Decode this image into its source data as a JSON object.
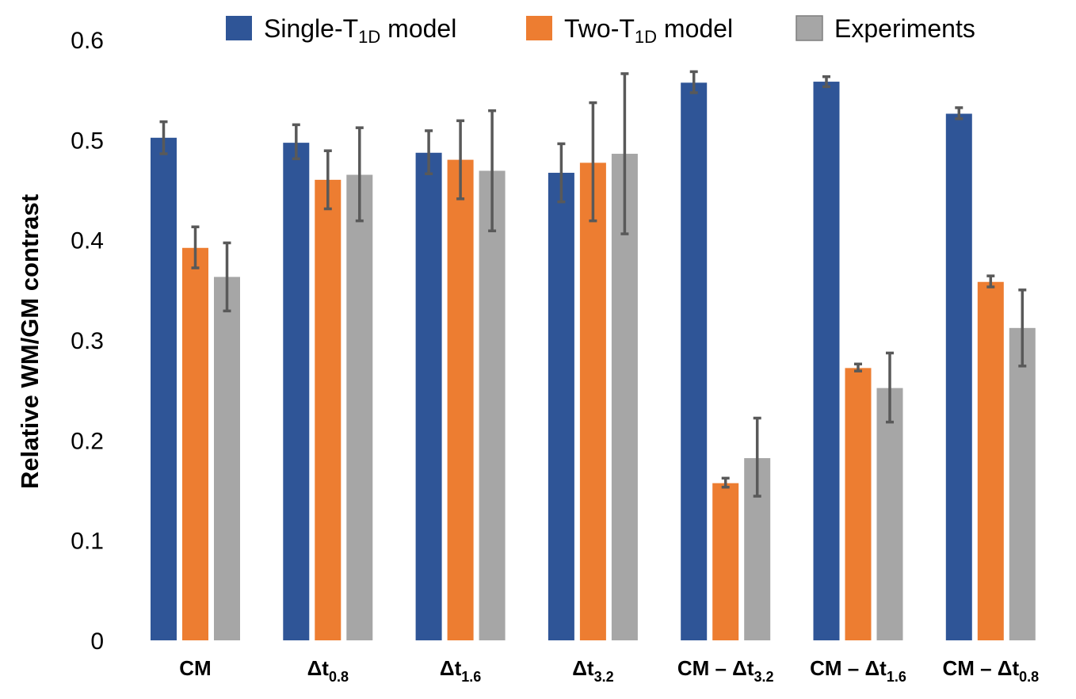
{
  "chart_data": {
    "type": "bar",
    "title": "",
    "xlabel": "",
    "ylabel": "Relative WM/GM contrast",
    "ylim": [
      0,
      0.6
    ],
    "yticks": [
      0,
      0.1,
      0.2,
      0.3,
      0.4,
      0.5,
      0.6
    ],
    "ytick_labels": [
      "0",
      "0.1",
      "0.2",
      "0.3",
      "0.4",
      "0.5",
      "0.6"
    ],
    "grid": false,
    "legend_position": "top",
    "categories": [
      {
        "main": "CM",
        "sub": ""
      },
      {
        "main": "Δt",
        "sub": "0.8"
      },
      {
        "main": "Δt",
        "sub": "1.6"
      },
      {
        "main": "Δt",
        "sub": "3.2"
      },
      {
        "main": "CM – Δt",
        "sub": "3.2"
      },
      {
        "main": "CM – Δt",
        "sub": "1.6"
      },
      {
        "main": "CM – Δt",
        "sub": "0.8"
      }
    ],
    "series": [
      {
        "name": "Single-T1D model",
        "legend_main": "Single-T",
        "legend_sub": "1D",
        "legend_suffix": " model",
        "color": "#2f5597",
        "values": [
          0.502,
          0.497,
          0.487,
          0.467,
          0.557,
          0.558,
          0.526
        ],
        "err_low": [
          0.486,
          0.481,
          0.466,
          0.438,
          0.547,
          0.553,
          0.521
        ],
        "err_high": [
          0.518,
          0.515,
          0.509,
          0.496,
          0.568,
          0.563,
          0.532
        ]
      },
      {
        "name": "Two-T1D model",
        "legend_main": "Two-T",
        "legend_sub": "1D",
        "legend_suffix": " model",
        "color": "#ed7d31",
        "values": [
          0.392,
          0.46,
          0.48,
          0.477,
          0.157,
          0.272,
          0.358
        ],
        "err_low": [
          0.372,
          0.431,
          0.441,
          0.419,
          0.153,
          0.269,
          0.353
        ],
        "err_high": [
          0.413,
          0.489,
          0.519,
          0.537,
          0.162,
          0.276,
          0.364
        ]
      },
      {
        "name": "Experiments",
        "legend_main": "Experiments",
        "legend_sub": "",
        "legend_suffix": "",
        "color": "#a6a6a6",
        "values": [
          0.363,
          0.465,
          0.469,
          0.486,
          0.182,
          0.252,
          0.312
        ],
        "err_low": [
          0.329,
          0.419,
          0.409,
          0.406,
          0.144,
          0.218,
          0.274
        ],
        "err_high": [
          0.397,
          0.512,
          0.529,
          0.566,
          0.222,
          0.287,
          0.35
        ]
      }
    ],
    "error_bar_color": "#595959"
  }
}
